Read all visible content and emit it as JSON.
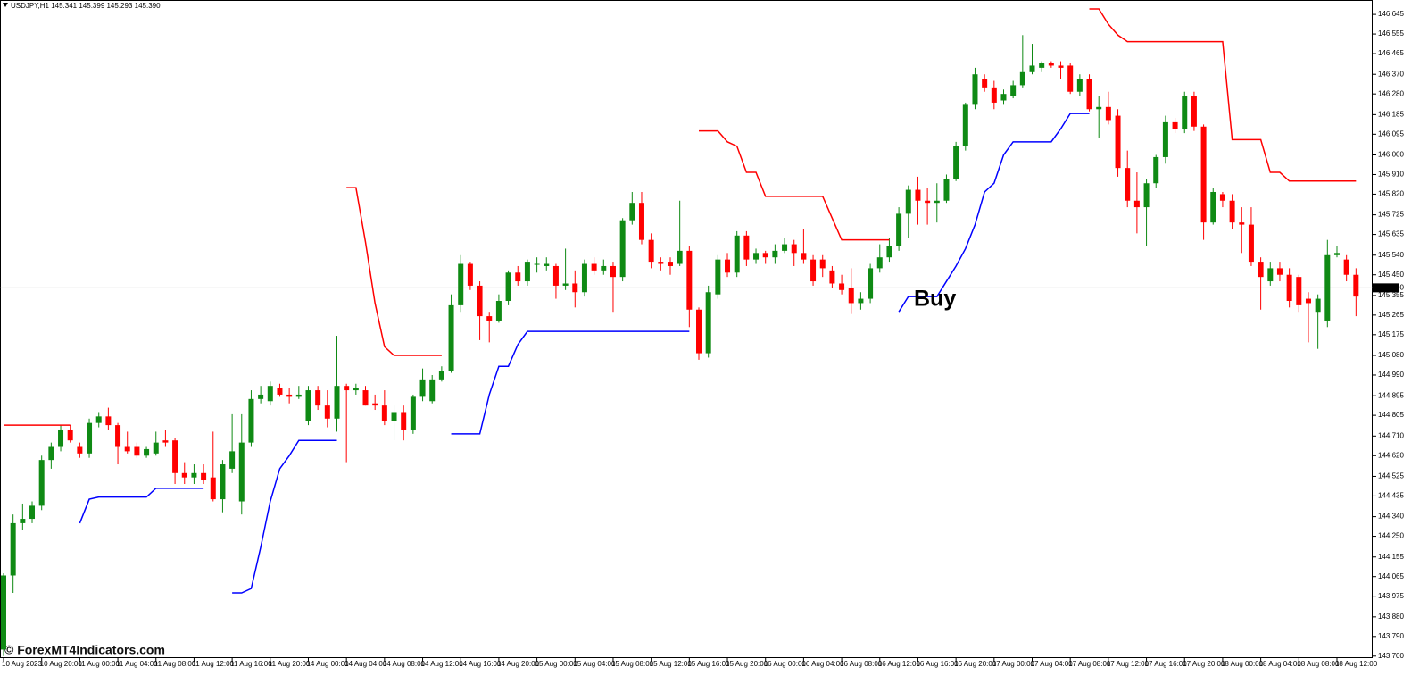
{
  "chart_data": {
    "type": "candlestick",
    "title": "USDJPY,H1  145.341 145.399 145.293 145.390",
    "annotation": "Buy",
    "watermark": "© ForexMT4Indicators.com",
    "up_color": "#0f8a14",
    "down_color": "#ff0000",
    "categories": [
      "10 Aug 2023",
      null,
      null,
      null,
      "10 Aug 20:00",
      null,
      null,
      null,
      "11 Aug 00:00",
      null,
      null,
      null,
      "11 Aug 04:00",
      null,
      null,
      null,
      "11 Aug 08:00",
      null,
      null,
      null,
      "11 Aug 12:00",
      null,
      null,
      null,
      "11 Aug 16:00",
      null,
      null,
      null,
      "11 Aug 20:00",
      null,
      null,
      null,
      "14 Aug 00:00",
      null,
      null,
      null,
      "14 Aug 04:00",
      null,
      null,
      null,
      "14 Aug 08:00",
      null,
      null,
      null,
      "14 Aug 12:00",
      null,
      null,
      null,
      "14 Aug 16:00",
      null,
      null,
      null,
      "14 Aug 20:00",
      null,
      null,
      null,
      "15 Aug 00:00",
      null,
      null,
      null,
      "15 Aug 04:00",
      null,
      null,
      null,
      "15 Aug 08:00",
      null,
      null,
      null,
      "15 Aug 12:00",
      null,
      null,
      null,
      "15 Aug 16:00",
      null,
      null,
      null,
      "15 Aug 20:00",
      null,
      null,
      null,
      "16 Aug 00:00",
      null,
      null,
      null,
      "16 Aug 04:00",
      null,
      null,
      null,
      "16 Aug 08:00",
      null,
      null,
      null,
      "16 Aug 12:00",
      null,
      null,
      null,
      "16 Aug 16:00",
      null,
      null,
      null,
      "16 Aug 20:00",
      null,
      null,
      null,
      "17 Aug 00:00",
      null,
      null,
      null,
      "17 Aug 04:00",
      null,
      null,
      null,
      "17 Aug 08:00",
      null,
      null,
      null,
      "17 Aug 12:00",
      null,
      null,
      null,
      "17 Aug 16:00",
      null,
      null,
      null,
      "17 Aug 20:00",
      null,
      null,
      null,
      "18 Aug 00:00",
      null,
      null,
      null,
      "18 Aug 04:00",
      null,
      null,
      null,
      "18 Aug 08:00",
      null,
      null,
      null,
      "18 Aug 12:00",
      null,
      null
    ],
    "open": [
      143.73,
      144.07,
      144.31,
      144.33,
      144.39,
      144.6,
      144.66,
      144.74,
      144.66,
      144.63,
      144.77,
      144.8,
      144.76,
      144.66,
      144.66,
      144.62,
      144.63,
      144.69,
      144.69,
      144.54,
      144.52,
      144.54,
      144.52,
      144.42,
      144.56,
      144.41,
      144.68,
      144.88,
      144.87,
      144.93,
      144.9,
      144.89,
      144.78,
      144.92,
      144.85,
      144.79,
      144.94,
      144.92,
      144.92,
      144.86,
      144.85,
      144.78,
      144.82,
      144.74,
      144.89,
      144.87,
      144.97,
      145.01,
      145.31,
      145.5,
      145.4,
      145.26,
      145.24,
      145.33,
      145.46,
      145.42,
      145.5,
      145.49,
      145.49,
      145.4,
      145.41,
      145.37,
      145.5,
      145.47,
      145.49,
      145.44,
      145.7,
      145.78,
      145.61,
      145.51,
      145.51,
      145.5,
      145.56,
      145.29,
      145.09,
      145.36,
      145.52,
      145.46,
      145.63,
      145.52,
      145.55,
      145.53,
      145.56,
      145.59,
      145.55,
      145.52,
      145.52,
      145.47,
      145.41,
      145.39,
      145.32,
      145.34,
      145.48,
      145.53,
      145.58,
      145.73,
      145.84,
      145.79,
      145.78,
      145.79,
      145.89,
      146.04,
      146.23,
      146.35,
      146.31,
      146.25,
      146.27,
      146.32,
      146.38,
      146.4,
      146.42,
      146.41,
      146.41,
      146.29,
      146.35,
      146.21,
      146.22,
      146.18,
      145.94,
      145.79,
      145.76,
      145.87,
      145.99,
      146.15,
      146.12,
      146.27,
      146.13,
      145.69,
      145.82,
      145.79,
      145.69,
      145.68,
      145.51,
      145.42,
      145.48,
      145.45,
      145.44,
      145.34,
      145.28,
      145.24,
      145.54,
      145.52,
      145.45
    ],
    "high": [
      144.08,
      144.35,
      144.4,
      144.41,
      144.62,
      144.68,
      144.76,
      144.76,
      144.68,
      144.79,
      144.82,
      144.84,
      144.77,
      144.73,
      144.68,
      144.66,
      144.73,
      144.74,
      144.7,
      144.59,
      144.58,
      144.58,
      144.73,
      144.6,
      144.81,
      144.81,
      144.92,
      144.94,
      144.96,
      144.95,
      144.93,
      144.94,
      144.94,
      144.94,
      144.92,
      145.17,
      144.95,
      144.95,
      144.94,
      144.9,
      144.92,
      144.85,
      144.85,
      144.9,
      145.02,
      144.99,
      145.03,
      145.36,
      145.54,
      145.51,
      145.42,
      145.28,
      145.36,
      145.47,
      145.49,
      145.52,
      145.53,
      145.53,
      145.5,
      145.57,
      145.47,
      145.52,
      145.53,
      145.52,
      145.51,
      145.71,
      145.83,
      145.83,
      145.64,
      145.53,
      145.53,
      145.79,
      145.58,
      145.3,
      145.4,
      145.54,
      145.55,
      145.65,
      145.65,
      145.57,
      145.56,
      145.59,
      145.62,
      145.61,
      145.66,
      145.54,
      145.54,
      145.49,
      145.45,
      145.48,
      145.37,
      145.5,
      145.59,
      145.62,
      145.76,
      145.86,
      145.9,
      145.85,
      145.87,
      145.91,
      146.06,
      146.24,
      146.4,
      146.37,
      146.34,
      146.3,
      146.34,
      146.55,
      146.51,
      146.43,
      146.43,
      146.43,
      146.42,
      146.37,
      146.37,
      146.27,
      146.29,
      146.21,
      146.02,
      145.92,
      145.89,
      146.0,
      146.18,
      146.17,
      146.29,
      146.29,
      146.14,
      145.85,
      145.83,
      145.82,
      145.76,
      145.76,
      145.53,
      145.51,
      145.51,
      145.48,
      145.45,
      145.37,
      145.36,
      145.61,
      145.58,
      145.54,
      145.48
    ],
    "low": [
      143.7,
      143.99,
      144.28,
      144.31,
      144.37,
      144.56,
      144.64,
      144.68,
      144.61,
      144.61,
      144.75,
      144.74,
      144.58,
      144.63,
      144.61,
      144.61,
      144.62,
      144.66,
      144.49,
      144.49,
      144.49,
      144.49,
      144.41,
      144.36,
      144.54,
      144.35,
      144.66,
      144.86,
      144.85,
      144.89,
      144.86,
      144.88,
      144.76,
      144.83,
      144.75,
      144.73,
      144.59,
      144.9,
      144.85,
      144.83,
      144.76,
      144.69,
      144.69,
      144.72,
      144.87,
      144.86,
      144.96,
      145.0,
      145.28,
      145.38,
      145.15,
      145.14,
      145.23,
      145.31,
      145.4,
      145.4,
      145.46,
      145.47,
      145.34,
      145.38,
      145.3,
      145.35,
      145.45,
      145.45,
      145.28,
      145.42,
      145.68,
      145.59,
      145.48,
      145.47,
      145.45,
      145.49,
      145.21,
      145.06,
      145.07,
      145.34,
      145.44,
      145.44,
      145.49,
      145.5,
      145.5,
      145.5,
      145.55,
      145.49,
      145.5,
      145.4,
      145.44,
      145.39,
      145.36,
      145.27,
      145.29,
      145.32,
      145.46,
      145.51,
      145.56,
      145.62,
      145.68,
      145.68,
      145.69,
      145.78,
      145.88,
      146.02,
      146.21,
      146.29,
      146.21,
      146.23,
      146.26,
      146.31,
      146.37,
      146.38,
      146.4,
      146.35,
      146.28,
      146.27,
      146.2,
      146.08,
      146.14,
      145.9,
      145.76,
      145.64,
      145.58,
      145.85,
      145.96,
      146.1,
      146.1,
      146.11,
      145.61,
      145.68,
      145.76,
      145.66,
      145.55,
      145.49,
      145.29,
      145.4,
      145.42,
      145.3,
      145.28,
      145.14,
      145.11,
      145.21,
      145.53,
      145.42,
      145.26
    ],
    "close": [
      144.07,
      144.31,
      144.33,
      144.39,
      144.6,
      144.66,
      144.74,
      144.69,
      144.63,
      144.77,
      144.8,
      144.76,
      144.66,
      144.64,
      144.62,
      144.65,
      144.68,
      144.68,
      144.54,
      144.52,
      144.54,
      144.51,
      144.42,
      144.58,
      144.64,
      144.68,
      144.88,
      144.9,
      144.94,
      144.9,
      144.89,
      144.9,
      144.92,
      144.85,
      144.79,
      144.94,
      144.92,
      144.93,
      144.85,
      144.85,
      144.78,
      144.82,
      144.74,
      144.89,
      144.97,
      144.97,
      145.01,
      145.31,
      145.5,
      145.4,
      145.26,
      145.24,
      145.33,
      145.46,
      145.42,
      145.51,
      145.5,
      145.5,
      145.4,
      145.41,
      145.37,
      145.5,
      145.47,
      145.49,
      145.44,
      145.7,
      145.78,
      145.61,
      145.51,
      145.5,
      145.49,
      145.56,
      145.29,
      145.09,
      145.37,
      145.52,
      145.46,
      145.63,
      145.52,
      145.55,
      145.53,
      145.56,
      145.59,
      145.55,
      145.52,
      145.42,
      145.48,
      145.41,
      145.38,
      145.32,
      145.34,
      145.48,
      145.53,
      145.58,
      145.73,
      145.84,
      145.79,
      145.78,
      145.79,
      145.89,
      146.04,
      146.23,
      146.37,
      146.31,
      146.24,
      146.28,
      146.32,
      146.38,
      146.41,
      146.42,
      146.41,
      146.4,
      146.29,
      146.35,
      146.21,
      146.22,
      146.16,
      145.94,
      145.79,
      145.76,
      145.87,
      145.99,
      146.15,
      146.12,
      146.27,
      146.13,
      145.69,
      145.83,
      145.79,
      145.69,
      145.68,
      145.51,
      145.44,
      145.48,
      145.45,
      145.33,
      145.31,
      145.32,
      145.34,
      145.54,
      145.55,
      145.45,
      145.35
    ],
    "lines": [
      {
        "color": "#ff0000",
        "values": [
          144.76,
          144.76,
          144.76,
          144.76,
          144.76,
          144.76,
          144.76,
          144.76,
          null,
          null,
          null,
          null,
          null,
          null,
          null,
          null,
          null,
          null,
          null,
          null,
          null,
          null,
          null,
          null,
          null,
          null,
          null,
          null,
          null,
          null,
          null,
          null,
          null,
          null,
          null,
          null,
          145.85,
          145.85,
          145.6,
          145.32,
          145.12,
          145.08,
          145.08,
          145.08,
          145.08,
          145.08,
          145.08,
          null,
          null,
          null,
          null,
          null,
          null,
          null,
          null,
          null,
          null,
          null,
          null,
          null,
          null,
          null,
          null,
          null,
          null,
          null,
          null,
          null,
          null,
          null,
          null,
          null,
          null,
          146.11,
          146.11,
          146.11,
          146.06,
          146.04,
          145.92,
          145.92,
          145.81,
          145.81,
          145.81,
          145.81,
          145.81,
          145.81,
          145.81,
          145.71,
          145.61,
          145.61,
          145.61,
          145.61,
          145.61,
          145.61,
          null,
          null,
          null,
          null,
          null,
          null,
          null,
          null,
          null,
          null,
          null,
          null,
          null,
          null,
          null,
          null,
          null,
          null,
          null,
          null,
          146.67,
          146.67,
          146.6,
          146.55,
          146.52,
          146.52,
          146.52,
          146.52,
          146.52,
          146.52,
          146.52,
          146.52,
          146.52,
          146.52,
          146.52,
          146.07,
          146.07,
          146.07,
          146.07,
          145.92,
          145.92,
          145.88,
          145.88,
          145.88,
          145.88,
          145.88,
          145.88,
          145.88,
          145.88
        ]
      },
      {
        "color": "#0000ff",
        "values": [
          null,
          null,
          null,
          null,
          null,
          null,
          null,
          null,
          144.31,
          144.42,
          144.43,
          144.43,
          144.43,
          144.43,
          144.43,
          144.43,
          144.47,
          144.47,
          144.47,
          144.47,
          144.47,
          144.47,
          null,
          null,
          143.99,
          143.99,
          144.01,
          144.2,
          144.41,
          144.56,
          144.62,
          144.69,
          144.69,
          144.69,
          144.69,
          144.69,
          null,
          null,
          null,
          null,
          null,
          null,
          null,
          null,
          null,
          null,
          null,
          144.72,
          144.72,
          144.72,
          144.72,
          144.9,
          145.03,
          145.03,
          145.13,
          145.19,
          145.19,
          145.19,
          145.19,
          145.19,
          145.19,
          145.19,
          145.19,
          145.19,
          145.19,
          145.19,
          145.19,
          145.19,
          145.19,
          145.19,
          145.19,
          145.19,
          145.19,
          null,
          null,
          null,
          null,
          null,
          null,
          null,
          null,
          null,
          null,
          null,
          null,
          null,
          null,
          null,
          null,
          null,
          null,
          null,
          null,
          null,
          145.28,
          145.35,
          145.35,
          145.35,
          145.35,
          145.42,
          145.49,
          145.57,
          145.68,
          145.83,
          145.87,
          146.0,
          146.06,
          146.06,
          146.06,
          146.06,
          146.06,
          146.12,
          146.19,
          146.19,
          146.19,
          null,
          null,
          null,
          null,
          null,
          null,
          null,
          null,
          null,
          null,
          null,
          null,
          null,
          null,
          null,
          null,
          null,
          null,
          null,
          null,
          null,
          null,
          null,
          null,
          null,
          null,
          null,
          null
        ]
      }
    ],
    "current_price": {
      "value": 145.39,
      "label": "145.390"
    },
    "ylim": [
      143.695,
      146.711
    ],
    "yticks": [
      146.645,
      146.555,
      146.465,
      {
        "value": 146.37,
        "label": "146.370"
      },
      {
        "value": 146.28,
        "label": "146.280"
      },
      146.185,
      146.095,
      {
        "value": 146,
        "label": "146.000"
      },
      {
        "value": 145.91,
        "label": "145.910"
      },
      {
        "value": 145.82,
        "label": "145.820"
      },
      145.725,
      145.635,
      {
        "value": 145.54,
        "label": "145.540"
      },
      {
        "value": 145.45,
        "label": "145.450"
      },
      145.355,
      145.265,
      145.175,
      {
        "value": 145.08,
        "label": "145.080"
      },
      {
        "value": 144.99,
        "label": "144.990"
      },
      144.895,
      144.805,
      {
        "value": 144.71,
        "label": "144.710"
      },
      {
        "value": 144.62,
        "label": "144.620"
      },
      144.525,
      144.435,
      {
        "value": 144.34,
        "label": "144.340"
      },
      {
        "value": 144.25,
        "label": "144.250"
      },
      144.155,
      144.065,
      143.975,
      {
        "value": 143.88,
        "label": "143.880"
      },
      {
        "value": 143.79,
        "label": "143.790"
      },
      {
        "value": 143.7,
        "label": "143.700"
      }
    ],
    "grid": false
  }
}
